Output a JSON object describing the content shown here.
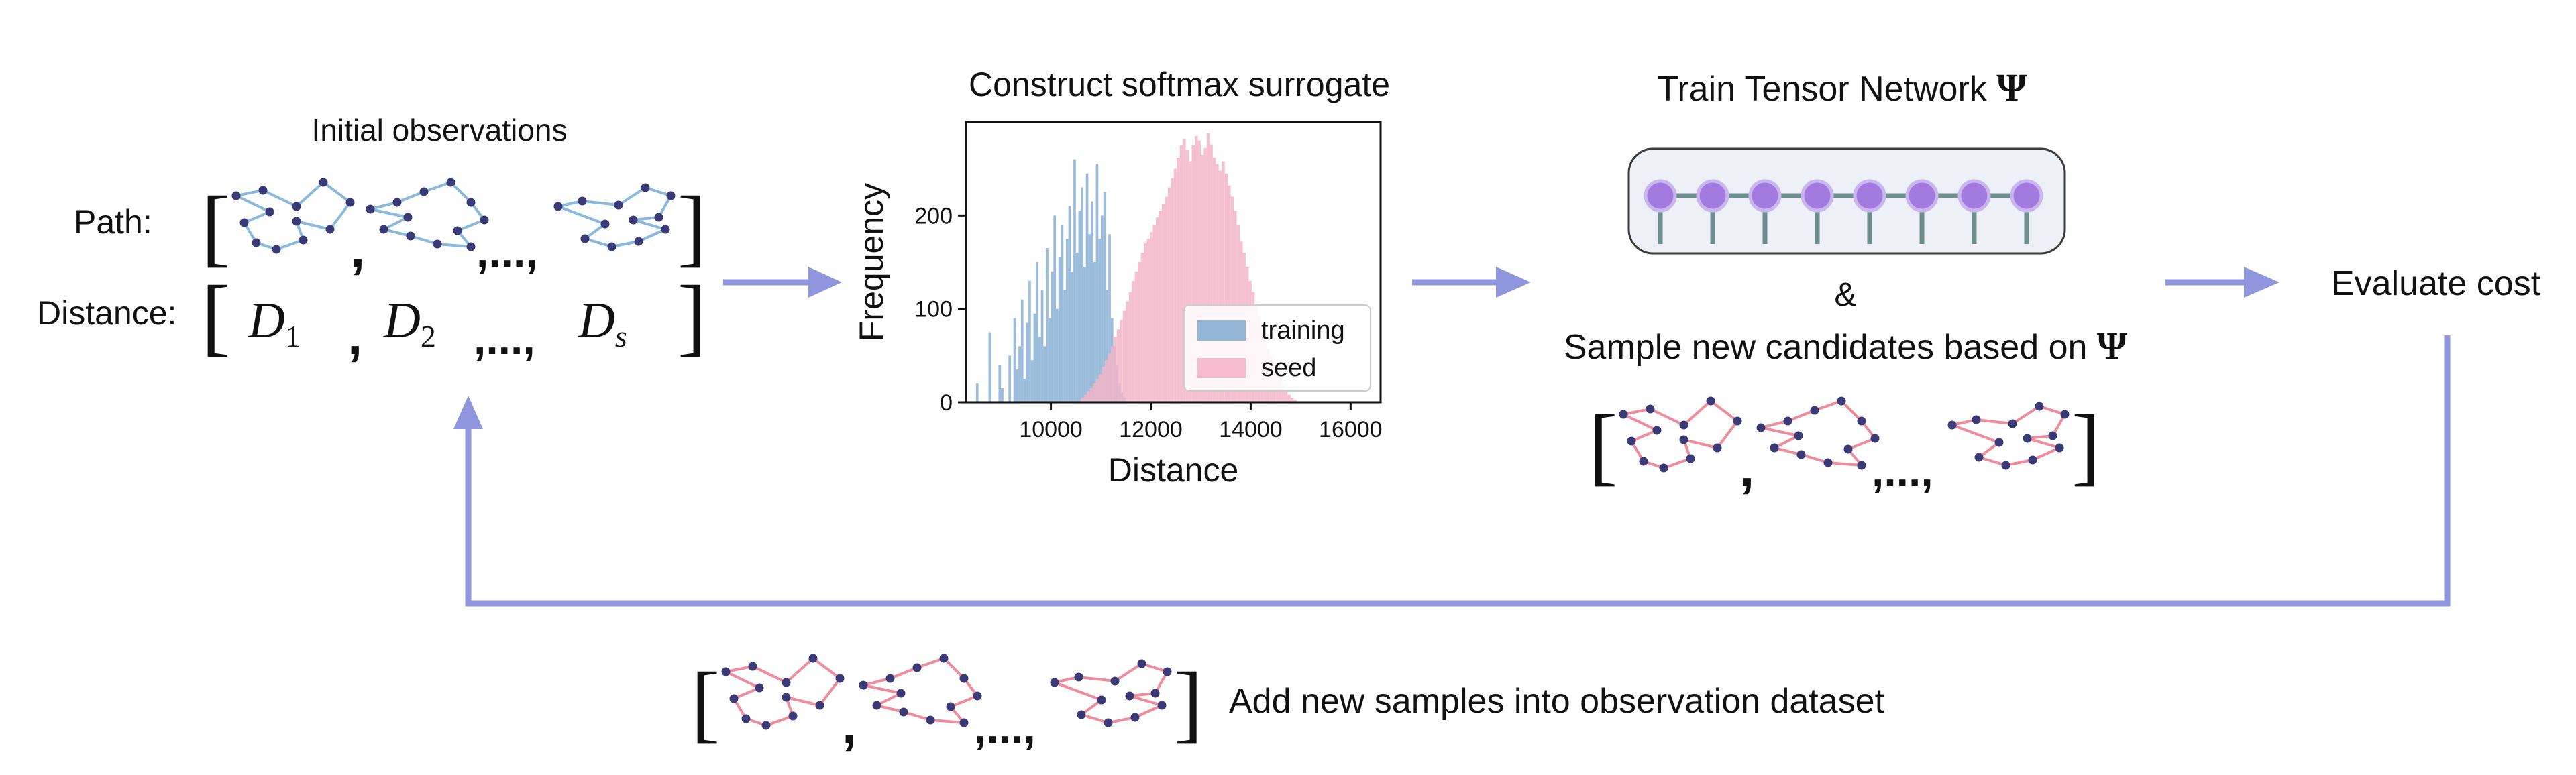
{
  "initial": {
    "title": "Initial observations",
    "path_label": "Path:",
    "distance_label": "Distance:",
    "comma": ",",
    "ellipsis": ",...,",
    "d1": "D",
    "d1_sub": "1",
    "d2": "D",
    "d2_sub": "2",
    "ds": "D",
    "ds_sub": "s"
  },
  "surrogate": {
    "title": "Construct softmax surrogate"
  },
  "tensor": {
    "title": "Train Tensor Network",
    "psi": "Ψ",
    "amp": "&",
    "sample_text": "Sample new candidates based on",
    "sample_psi": "Ψ",
    "node_count": 8
  },
  "evaluate": {
    "label": "Evaluate cost"
  },
  "add": {
    "label": "Add new samples into observation dataset"
  },
  "brackets": {
    "open": "[",
    "close": "]",
    "comma": ",",
    "ellipsis": ",...,"
  },
  "colors": {
    "arrow": "#8f96dd",
    "path_blue": "#8ab9dc",
    "path_pink": "#ee8c9b",
    "node": "#3b3a78",
    "training": "#89b0d3",
    "seed": "#f3b6c9",
    "tn_node": "#a37be0",
    "tn_edge": "#6d8e8e",
    "tn_box": "#eef0f7"
  },
  "chart_data": {
    "type": "histogram",
    "title": "",
    "xlabel": "Distance",
    "ylabel": "Frequency",
    "xlim": [
      8300,
      16600
    ],
    "ylim": [
      0,
      300
    ],
    "xticks": [
      10000,
      12000,
      14000,
      16000
    ],
    "yticks": [
      0,
      100,
      200
    ],
    "legend_position": "lower-right",
    "series": [
      {
        "name": "training",
        "color": "#89b0d3",
        "bin_start": 8500,
        "bin_width": 50,
        "values": [
          20,
          0,
          0,
          0,
          0,
          75,
          0,
          0,
          0,
          40,
          15,
          0,
          0,
          50,
          0,
          90,
          35,
          60,
          110,
          25,
          85,
          130,
          45,
          95,
          150,
          70,
          120,
          60,
          165,
          90,
          140,
          200,
          100,
          155,
          190,
          120,
          175,
          210,
          140,
          260,
          160,
          205,
          230,
          145,
          245,
          180,
          215,
          150,
          255,
          175,
          200,
          225,
          120,
          180,
          90,
          60,
          40,
          20,
          10,
          5
        ]
      },
      {
        "name": "seed",
        "color": "#f3b6c9",
        "bin_start": 10600,
        "bin_width": 60,
        "values": [
          5,
          8,
          12,
          15,
          20,
          25,
          30,
          38,
          45,
          52,
          60,
          70,
          78,
          88,
          98,
          108,
          118,
          130,
          140,
          150,
          160,
          170,
          175,
          182,
          190,
          198,
          205,
          212,
          220,
          230,
          240,
          250,
          262,
          275,
          282,
          270,
          258,
          275,
          285,
          280,
          265,
          272,
          288,
          276,
          262,
          255,
          248,
          258,
          245,
          232,
          220,
          205,
          190,
          172,
          160,
          145,
          130,
          118,
          105,
          92,
          80,
          68,
          58,
          48,
          40,
          32,
          25,
          18,
          12,
          8,
          5,
          3
        ]
      }
    ]
  }
}
